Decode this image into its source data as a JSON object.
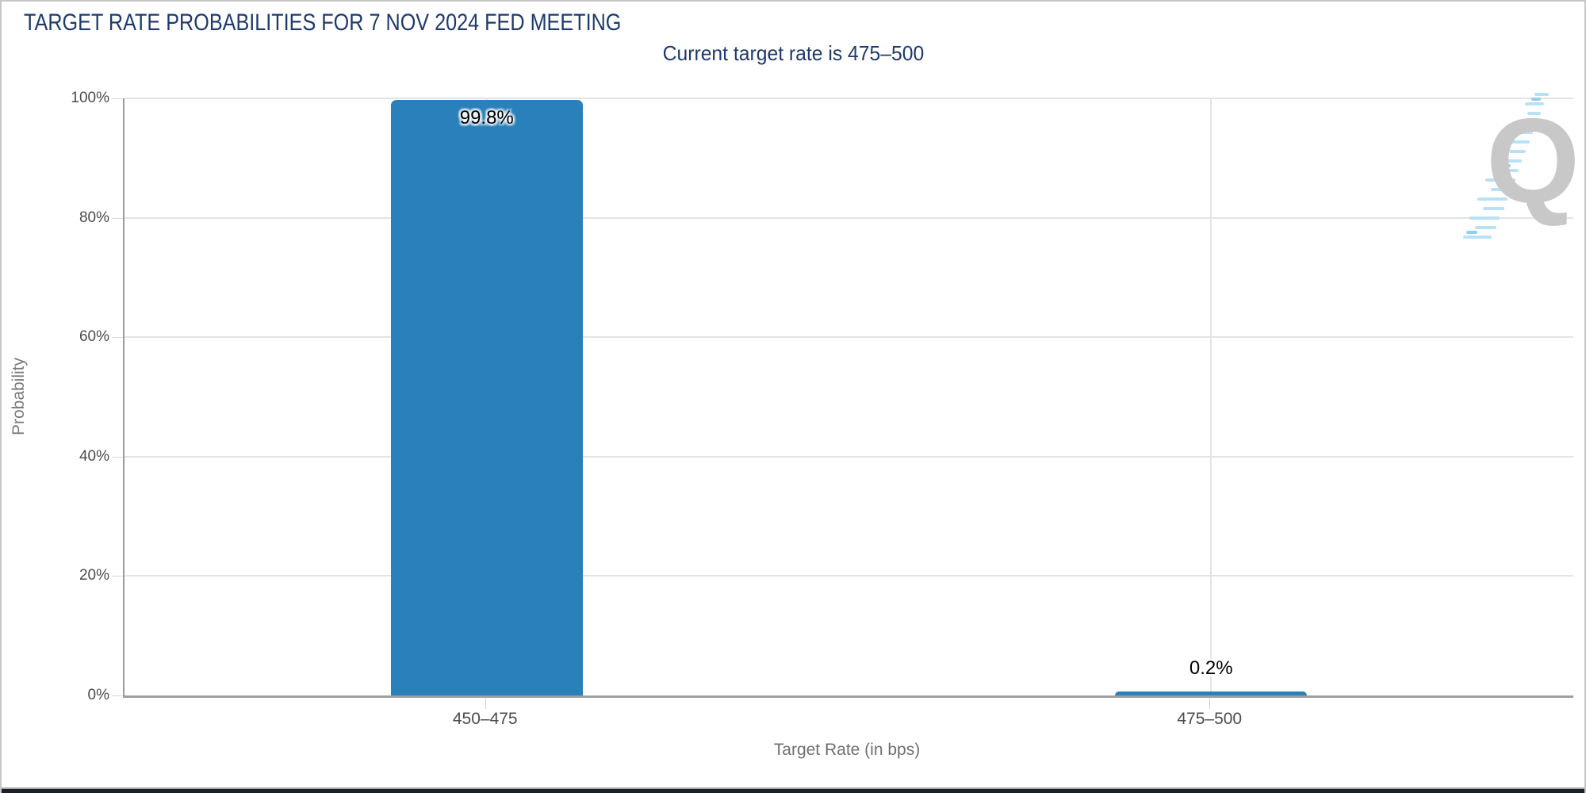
{
  "header": {
    "title": "TARGET RATE PROBABILITIES FOR 7 NOV 2024 FED MEETING",
    "subtitle": "Current target rate is 475–500"
  },
  "chart_data": {
    "type": "bar",
    "title": "TARGET RATE PROBABILITIES FOR 7 NOV 2024 FED MEETING",
    "subtitle": "Current target rate is 475–500",
    "categories": [
      "450–475",
      "475–500"
    ],
    "values": [
      99.8,
      0.2
    ],
    "value_labels": [
      "99.8%",
      "0.2%"
    ],
    "xlabel": "Target Rate (in bps)",
    "ylabel": "Probability",
    "yticks_percent": [
      0,
      20,
      40,
      60,
      80,
      100
    ],
    "ytick_labels": [
      "0%",
      "20%",
      "40%",
      "60%",
      "80%",
      "100%"
    ],
    "ylim": [
      0,
      100
    ],
    "grid": true,
    "legend_position": "none",
    "bar_color": "#2a80ba",
    "title_color": "#1e3a6c",
    "axis_text_color": "#4c4c4c"
  },
  "watermark": {
    "letter": "Q"
  }
}
